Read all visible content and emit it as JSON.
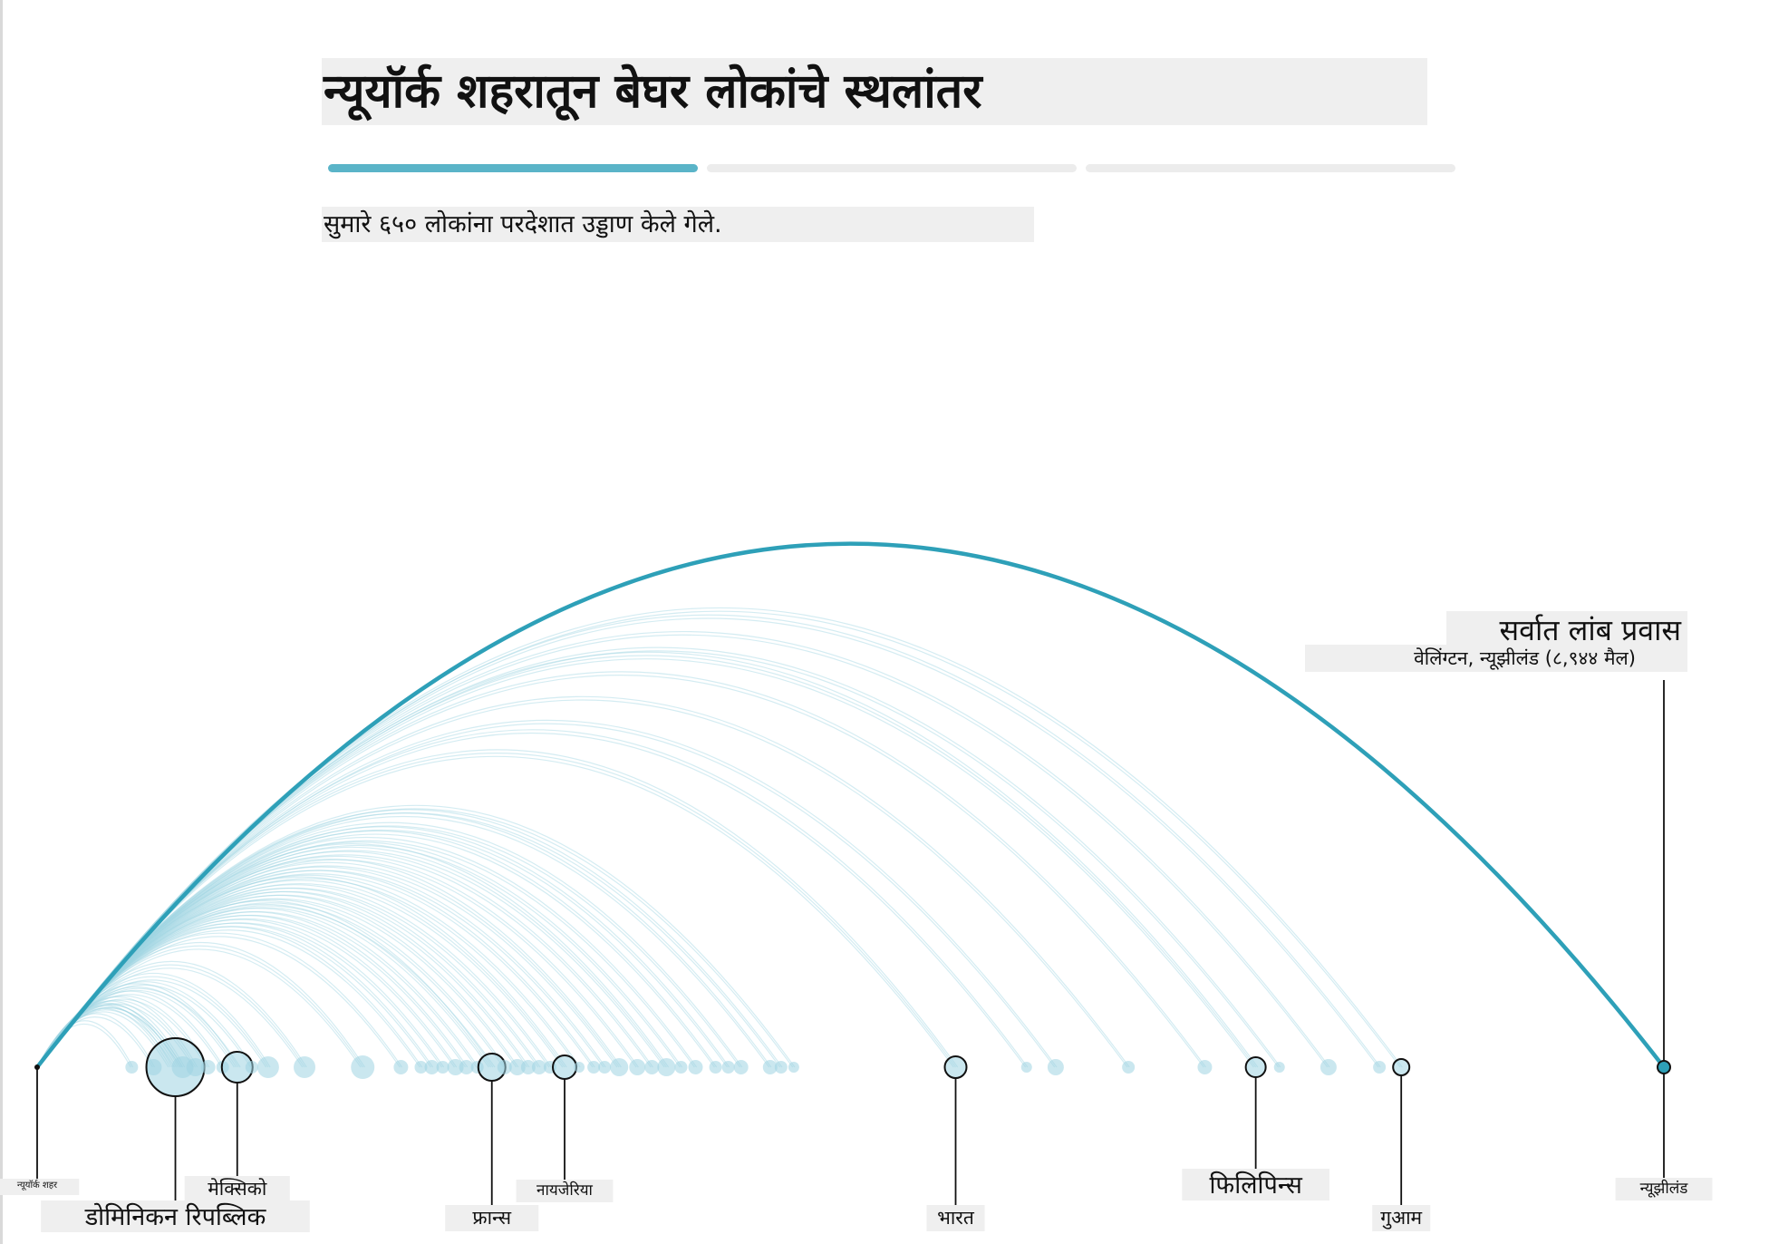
{
  "header": {
    "title": "न्यूयॉर्क शहरातून बेघर लोकांचे स्थलांतर",
    "subtitle": "सुमारे ६५० लोकांना परदेशात उड्डाण केले गेले.",
    "steps": [
      {
        "active": true
      },
      {
        "active": false
      },
      {
        "active": false
      }
    ]
  },
  "colors": {
    "arc": "#2ea0b8",
    "arc_light": "#9fd4e2",
    "dot": "#9fd4e2",
    "step_active": "#5ab4c8",
    "step_inactive": "#ececec",
    "label_bg": "#efefef"
  },
  "chart_data": {
    "type": "arc",
    "origin": "न्यूयॉर्क शहर",
    "x_unit": "miles",
    "xlim": [
      0,
      8944
    ],
    "longest": {
      "heading": "सर्वात लांब प्रवास",
      "detail": "वेलिंग्टन, न्यूझीलंड (८,९४४ मैल)",
      "distance": 8944
    },
    "labels": [
      {
        "text": "न्यूयॉर्क शहर",
        "distance": 0,
        "size": "tiny"
      },
      {
        "text": "डोमिनिकन रिपब्लिक",
        "distance": 760,
        "size": "large"
      },
      {
        "text": "मेक्सिको",
        "distance": 1100,
        "size": "medium"
      },
      {
        "text": "फ्रान्स",
        "distance": 2500,
        "size": "medium"
      },
      {
        "text": "नायजेरिया",
        "distance": 2900,
        "size": "small"
      },
      {
        "text": "भारत",
        "distance": 5050,
        "size": "medium"
      },
      {
        "text": "फिलिपिन्स",
        "distance": 6700,
        "size": "large"
      },
      {
        "text": "गुआम",
        "distance": 7500,
        "size": "medium"
      },
      {
        "text": "न्यूझीलंड",
        "distance": 8944,
        "size": "small"
      }
    ],
    "destinations": [
      {
        "distance": 520,
        "r": 7,
        "highlight": false
      },
      {
        "distance": 640,
        "r": 9,
        "highlight": false
      },
      {
        "distance": 760,
        "r": 32,
        "highlight": true
      },
      {
        "distance": 800,
        "r": 12,
        "highlight": false
      },
      {
        "distance": 870,
        "r": 10,
        "highlight": false
      },
      {
        "distance": 940,
        "r": 8,
        "highlight": false
      },
      {
        "distance": 1020,
        "r": 7,
        "highlight": false
      },
      {
        "distance": 1100,
        "r": 17,
        "highlight": true
      },
      {
        "distance": 1180,
        "r": 7,
        "highlight": false
      },
      {
        "distance": 1270,
        "r": 12,
        "highlight": false
      },
      {
        "distance": 1470,
        "r": 12,
        "highlight": false
      },
      {
        "distance": 1790,
        "r": 13,
        "highlight": false
      },
      {
        "distance": 2000,
        "r": 8,
        "highlight": false
      },
      {
        "distance": 2110,
        "r": 7,
        "highlight": false
      },
      {
        "distance": 2170,
        "r": 8,
        "highlight": false
      },
      {
        "distance": 2230,
        "r": 7,
        "highlight": false
      },
      {
        "distance": 2300,
        "r": 9,
        "highlight": false
      },
      {
        "distance": 2360,
        "r": 8,
        "highlight": false
      },
      {
        "distance": 2420,
        "r": 7,
        "highlight": false
      },
      {
        "distance": 2500,
        "r": 15,
        "highlight": true
      },
      {
        "distance": 2570,
        "r": 8,
        "highlight": false
      },
      {
        "distance": 2640,
        "r": 9,
        "highlight": false
      },
      {
        "distance": 2700,
        "r": 8,
        "highlight": false
      },
      {
        "distance": 2760,
        "r": 8,
        "highlight": false
      },
      {
        "distance": 2820,
        "r": 7,
        "highlight": false
      },
      {
        "distance": 2900,
        "r": 13,
        "highlight": true
      },
      {
        "distance": 2980,
        "r": 6,
        "highlight": false
      },
      {
        "distance": 3060,
        "r": 7,
        "highlight": false
      },
      {
        "distance": 3120,
        "r": 7,
        "highlight": false
      },
      {
        "distance": 3200,
        "r": 10,
        "highlight": false
      },
      {
        "distance": 3300,
        "r": 9,
        "highlight": false
      },
      {
        "distance": 3380,
        "r": 8,
        "highlight": false
      },
      {
        "distance": 3460,
        "r": 10,
        "highlight": false
      },
      {
        "distance": 3540,
        "r": 7,
        "highlight": false
      },
      {
        "distance": 3620,
        "r": 8,
        "highlight": false
      },
      {
        "distance": 3730,
        "r": 7,
        "highlight": false
      },
      {
        "distance": 3800,
        "r": 7,
        "highlight": false
      },
      {
        "distance": 3870,
        "r": 8,
        "highlight": false
      },
      {
        "distance": 4030,
        "r": 8,
        "highlight": false
      },
      {
        "distance": 4090,
        "r": 7,
        "highlight": false
      },
      {
        "distance": 4160,
        "r": 6,
        "highlight": false
      },
      {
        "distance": 5050,
        "r": 12,
        "highlight": true
      },
      {
        "distance": 5440,
        "r": 6,
        "highlight": false
      },
      {
        "distance": 5600,
        "r": 9,
        "highlight": false
      },
      {
        "distance": 6000,
        "r": 7,
        "highlight": false
      },
      {
        "distance": 6420,
        "r": 8,
        "highlight": false
      },
      {
        "distance": 6700,
        "r": 11,
        "highlight": true
      },
      {
        "distance": 6830,
        "r": 6,
        "highlight": false
      },
      {
        "distance": 7100,
        "r": 9,
        "highlight": false
      },
      {
        "distance": 7380,
        "r": 7,
        "highlight": false
      },
      {
        "distance": 7500,
        "r": 9,
        "highlight": true
      },
      {
        "distance": 8944,
        "r": 7,
        "highlight": true
      }
    ]
  }
}
